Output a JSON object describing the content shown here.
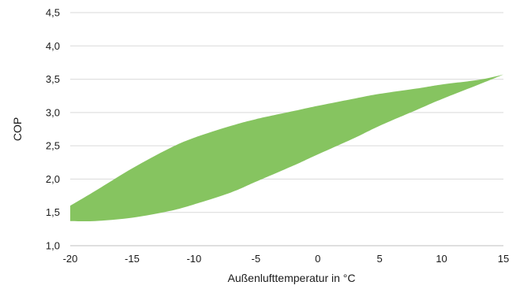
{
  "chart_data": {
    "type": "area",
    "xlabel": "Außenlufttemperatur in °C",
    "ylabel": "COP",
    "xlim": [
      -20,
      15
    ],
    "ylim": [
      1.0,
      4.5
    ],
    "x_ticks": [
      "-20",
      "-15",
      "-10",
      "-5",
      "0",
      "5",
      "10",
      "15"
    ],
    "y_ticks": [
      "1,0",
      "1,5",
      "2,0",
      "2,5",
      "3,0",
      "3,5",
      "4,0",
      "4,5"
    ],
    "grid": "horizontal",
    "fill_color": "#86c460",
    "series": [
      {
        "x": [
          -20,
          -18,
          -15,
          -12,
          -10,
          -7,
          -5,
          -2,
          0,
          3,
          5,
          8,
          10,
          13,
          15
        ],
        "upper": [
          1.6,
          1.82,
          2.16,
          2.46,
          2.62,
          2.8,
          2.9,
          3.02,
          3.1,
          3.21,
          3.28,
          3.36,
          3.42,
          3.49,
          3.57
        ],
        "lower": [
          1.37,
          1.37,
          1.42,
          1.52,
          1.62,
          1.8,
          1.96,
          2.2,
          2.37,
          2.62,
          2.8,
          3.04,
          3.2,
          3.42,
          3.57
        ]
      }
    ]
  }
}
